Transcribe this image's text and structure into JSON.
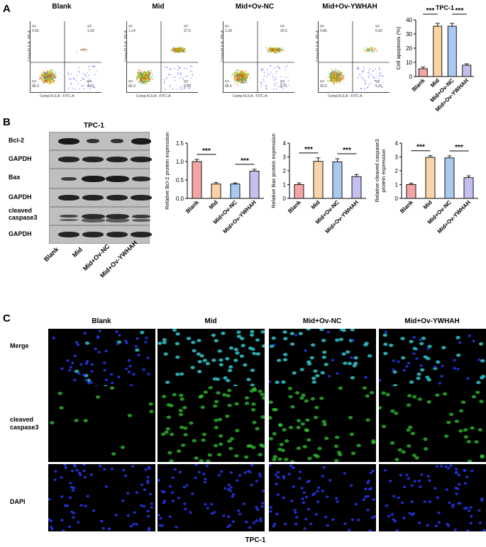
{
  "panel_letters": {
    "a": "A",
    "b": "B",
    "c": "C"
  },
  "groups": [
    "Blank",
    "Mid",
    "Mid+Ov-NC",
    "Mid+Ov-YWHAH"
  ],
  "panel_a": {
    "flow": [
      {
        "title": "Blank",
        "q1": "0.56",
        "q2": "1.93",
        "q3": "2.51",
        "q4": "95.0"
      },
      {
        "title": "Mid",
        "q1": "1.14",
        "q2": "27.6",
        "q3": "5.93",
        "q4": "65.3"
      },
      {
        "title": "Mid+Ov-NC",
        "q1": "1.28",
        "q2": "29.5",
        "q3": "3.71",
        "q4": "65.5"
      },
      {
        "title": "Mid+Ov-YWHAH",
        "q1": "0.86",
        "q2": "5.92",
        "q3": "1.21",
        "q4": "92.0"
      }
    ],
    "quadrant_labels": {
      "q1": "Q1",
      "q2": "Q2",
      "q3": "Q3",
      "q4": "Q4"
    },
    "x_axis_label": "Comp-FL6-A : FITC-A",
    "y_axis_label": "Comp-FL6-A : PE-A"
  },
  "panel_b": {
    "title": "TPC-1",
    "blot_labels": [
      "Bcl-2",
      "GAPDH",
      "Bax",
      "GAPDH",
      "cleaved caspase3",
      "GAPDH"
    ],
    "lane_labels": [
      "Blank",
      "Mid",
      "Mid+Ov-NC",
      "Mid+Ov-YWHAH"
    ]
  },
  "panel_c": {
    "column_titles": [
      "Blank",
      "Mid",
      "Mid+Ov-NC",
      "Mid+Ov-YWHAH"
    ],
    "row_labels": [
      "Merge",
      "cleaved caspase3",
      "DAPI"
    ],
    "footer": "TPC-1"
  },
  "colors": {
    "blank": "#f4a6a6",
    "mid": "#fbd3a6",
    "nc": "#a9c9f0",
    "ywhah": "#c3c0ee",
    "nuclei": "#2233dd",
    "caspase": "#33cc33"
  },
  "chart_data": [
    {
      "type": "bar",
      "title": "TPC-1",
      "ylabel": "Cell apoptosis (%)",
      "categories": [
        "Blank",
        "Mid",
        "Mid+Ov-NC",
        "Mid+Ov-YWHAH"
      ],
      "values": [
        5.5,
        35.5,
        35.5,
        8.0
      ],
      "errors": [
        1.2,
        2.0,
        2.0,
        1.0
      ],
      "ylim": [
        0,
        40
      ],
      "yticks": [
        "0",
        "10",
        "20",
        "30",
        "40"
      ],
      "sig": [
        "***",
        "***"
      ]
    },
    {
      "type": "bar",
      "ylabel": "Relative Bcl-2 protein expression",
      "categories": [
        "Blank",
        "Mid",
        "Mid+Ov-NC",
        "Mid+Ov-YWHAH"
      ],
      "values": [
        1.0,
        0.39,
        0.39,
        0.74
      ],
      "errors": [
        0.06,
        0.04,
        0.03,
        0.05
      ],
      "ylim": [
        0,
        1.5
      ],
      "yticks": [
        "0.0",
        "0.5",
        "1.0",
        "1.5"
      ],
      "sig": [
        "***",
        "***"
      ]
    },
    {
      "type": "bar",
      "ylabel": "Relative Bax protein expression",
      "categories": [
        "Blank",
        "Mid",
        "Mid+Ov-NC",
        "Mid+Ov-YWHAH"
      ],
      "values": [
        1.0,
        2.68,
        2.65,
        1.58
      ],
      "errors": [
        0.12,
        0.25,
        0.22,
        0.15
      ],
      "ylim": [
        0,
        4
      ],
      "yticks": [
        "0",
        "1",
        "2",
        "3",
        "4"
      ],
      "sig": [
        "***",
        "***"
      ]
    },
    {
      "type": "bar",
      "ylabel": "Relative cleaved caspase3 protein expression",
      "categories": [
        "Blank",
        "Mid",
        "Mid+Ov-NC",
        "Mid+Ov-YWHAH"
      ],
      "values": [
        1.0,
        2.97,
        2.93,
        1.5
      ],
      "errors": [
        0.1,
        0.12,
        0.15,
        0.13
      ],
      "ylim": [
        0,
        4
      ],
      "yticks": [
        "0",
        "1",
        "2",
        "3",
        "4"
      ],
      "sig": [
        "***",
        "***"
      ]
    }
  ]
}
